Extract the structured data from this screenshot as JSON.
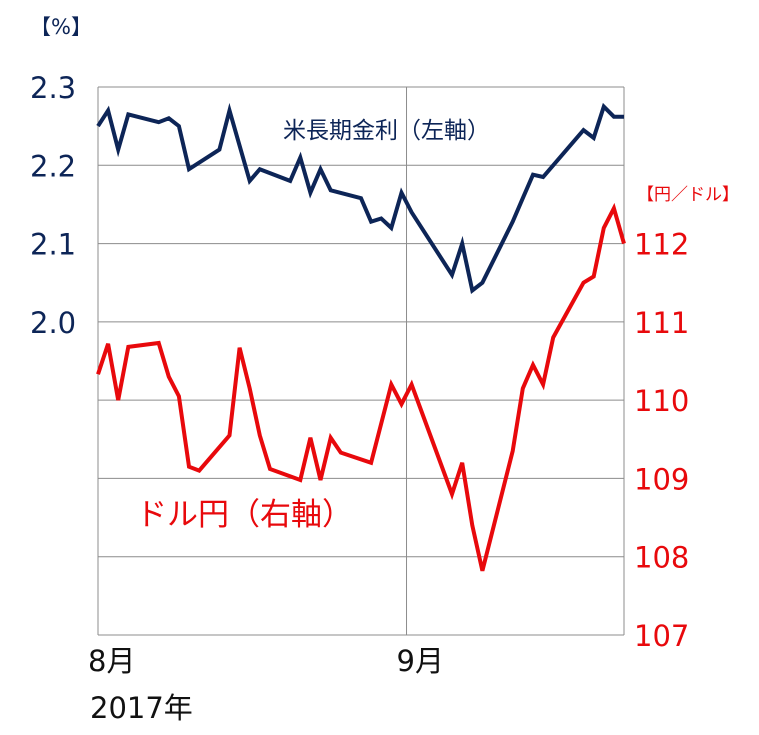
{
  "chart_data": {
    "type": "line",
    "y_left": {
      "unit": "【%】",
      "ylim": [
        1.6,
        2.3
      ],
      "ticks": [
        2.0,
        2.1,
        2.2,
        2.3
      ],
      "tick_labels": [
        "2.0",
        "2.1",
        "2.2",
        "2.3"
      ],
      "color": "#0d2557"
    },
    "y_right": {
      "unit": "【円／ドル】",
      "ylim": [
        107,
        114
      ],
      "ticks": [
        107,
        108,
        109,
        110,
        111,
        112
      ],
      "tick_labels": [
        "107",
        "108",
        "109",
        "110",
        "111",
        "112"
      ],
      "color": "#e8090c"
    },
    "x_axis": {
      "range": [
        0,
        52
      ],
      "ticks": [
        0,
        30.5
      ],
      "tick_labels": [
        "8月",
        "9月"
      ],
      "year_label": "2017年",
      "vertical_grid_at": [
        30.5
      ]
    },
    "grid": true,
    "series": [
      {
        "name": "米長期金利（左軸）",
        "axis": "left",
        "color": "#0d2557",
        "x": [
          0,
          1,
          2,
          3,
          6,
          7,
          8,
          9,
          12,
          13,
          14,
          15,
          16,
          19,
          20,
          21,
          22,
          23,
          26,
          27,
          28,
          29,
          30,
          31,
          35,
          36,
          37,
          38,
          41,
          42,
          43,
          44,
          47,
          48,
          49,
          50,
          51,
          52
        ],
        "values": [
          2.25,
          2.27,
          2.22,
          2.265,
          2.255,
          2.26,
          2.25,
          2.195,
          2.22,
          2.27,
          2.225,
          2.18,
          2.195,
          2.18,
          2.21,
          2.165,
          2.195,
          2.168,
          2.158,
          2.128,
          2.132,
          2.12,
          2.165,
          2.14,
          2.06,
          2.1,
          2.04,
          2.05,
          2.128,
          2.158,
          2.188,
          2.185,
          2.23,
          2.245,
          2.235,
          2.275,
          2.262,
          2.262
        ]
      },
      {
        "name": "ドル円（右軸）",
        "axis": "right",
        "color": "#e8090c",
        "x": [
          0,
          1,
          2,
          3,
          6,
          7,
          8,
          9,
          10,
          13,
          14,
          15,
          16,
          17,
          20,
          21,
          22,
          23,
          24,
          27,
          29,
          30,
          31,
          35,
          36,
          37,
          38,
          41,
          42,
          43,
          44,
          45,
          48,
          49,
          50,
          51,
          52
        ],
        "values": [
          110.33,
          110.72,
          110.0,
          110.68,
          110.73,
          110.3,
          110.05,
          109.15,
          109.1,
          109.55,
          110.67,
          110.15,
          109.55,
          109.12,
          108.98,
          109.52,
          108.98,
          109.52,
          109.33,
          109.2,
          110.2,
          109.95,
          110.2,
          108.8,
          109.2,
          108.4,
          107.82,
          109.35,
          110.15,
          110.45,
          110.2,
          110.8,
          111.5,
          111.58,
          112.2,
          112.45,
          112.0
        ]
      }
    ]
  }
}
